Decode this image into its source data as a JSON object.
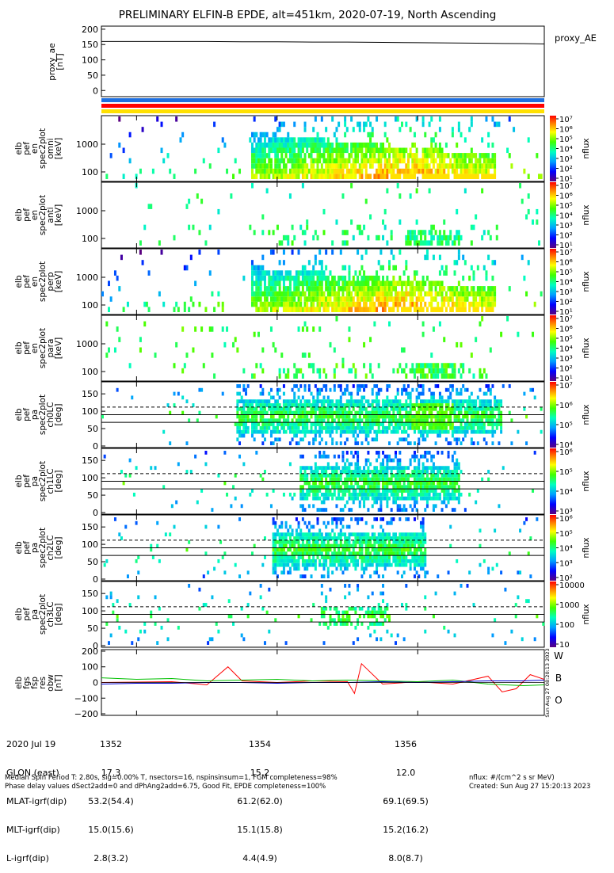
{
  "title": "PRELIMINARY ELFIN-B EPDE, alt=451km, 2020-07-19, North Ascending",
  "colors": {
    "red": "#ff0000",
    "green": "#00c000",
    "blue": "#0000d0",
    "bar_blue": "#1e6fe0",
    "bar_red": "#ff0000",
    "bar_yellow": "#ffe000"
  },
  "chart_data": [
    {
      "type": "line",
      "ylabel_lines": [
        "proxy_ae",
        "[nT]"
      ],
      "legend": "proxy_AE",
      "ylim": [
        -20,
        210
      ],
      "yticks": [
        "200",
        "150",
        "100",
        "50",
        "0"
      ],
      "x": [
        1351.5,
        1352,
        1352.5,
        1353,
        1353.5,
        1354,
        1354.5,
        1355,
        1355.5,
        1356,
        1356.5,
        1357,
        1357.5,
        1357.8
      ],
      "values": [
        160,
        160,
        160,
        160,
        159,
        159,
        158,
        158,
        157,
        156,
        155,
        154,
        153,
        152
      ]
    },
    {
      "type": "heatmap",
      "ylabel_lines": [
        "elb",
        "pef",
        "en",
        "spec2plot",
        "omni",
        "[keV]"
      ],
      "yticks": [
        "1000",
        "100"
      ],
      "cbar_ticks": [
        "10⁷",
        "10⁶",
        "10⁵",
        "10⁴",
        "10³",
        "10²",
        "10¹"
      ],
      "cbar_label": "nflux",
      "variant": "omni"
    },
    {
      "type": "heatmap",
      "ylabel_lines": [
        "elb",
        "pef",
        "en",
        "spec2plot",
        "anti",
        "[keV]"
      ],
      "yticks": [
        "1000",
        "100"
      ],
      "cbar_ticks": [
        "10⁷",
        "10⁶",
        "10⁵",
        "10⁴",
        "10³",
        "10²",
        "10¹"
      ],
      "cbar_label": "nflux",
      "variant": "anti"
    },
    {
      "type": "heatmap",
      "ylabel_lines": [
        "elb",
        "pef",
        "en",
        "spec2plot",
        "perp",
        "[keV]"
      ],
      "yticks": [
        "1000",
        "100"
      ],
      "cbar_ticks": [
        "10⁷",
        "10⁶",
        "10⁵",
        "10⁴",
        "10³",
        "10²",
        "10¹"
      ],
      "cbar_label": "nflux",
      "variant": "perp"
    },
    {
      "type": "heatmap",
      "ylabel_lines": [
        "elb",
        "pef",
        "en",
        "spec2plot",
        "para",
        "[keV]"
      ],
      "yticks": [
        "1000",
        "100"
      ],
      "cbar_ticks": [
        "10⁷",
        "10⁶",
        "10⁵",
        "10⁴",
        "10³",
        "10²",
        "10¹"
      ],
      "cbar_label": "nflux",
      "variant": "para"
    },
    {
      "type": "heatmap",
      "ylabel_lines": [
        "elb",
        "pef",
        "pa",
        "spec2plot",
        "ch0LC",
        "[deg]"
      ],
      "yticks": [
        "150",
        "100",
        "50",
        "0"
      ],
      "cbar_ticks": [
        "10⁷",
        "10⁶",
        "10⁵",
        "10⁴"
      ],
      "cbar_label": "nflux",
      "variant": "ch0"
    },
    {
      "type": "heatmap",
      "ylabel_lines": [
        "elb",
        "pef",
        "pa",
        "spec2plot",
        "ch1LC",
        "[deg]"
      ],
      "yticks": [
        "150",
        "100",
        "50",
        "0"
      ],
      "cbar_ticks": [
        "10⁶",
        "10⁵",
        "10⁴",
        "10³"
      ],
      "cbar_label": "nflux",
      "variant": "ch1"
    },
    {
      "type": "heatmap",
      "ylabel_lines": [
        "elb",
        "pef",
        "pa",
        "spec2plot",
        "ch2LC",
        "[deg]"
      ],
      "yticks": [
        "150",
        "100",
        "50",
        "0"
      ],
      "cbar_ticks": [
        "10⁶",
        "10⁵",
        "10⁴",
        "10³",
        "10²"
      ],
      "cbar_label": "nflux",
      "variant": "ch2"
    },
    {
      "type": "heatmap",
      "ylabel_lines": [
        "elb",
        "pef",
        "pa",
        "spec2plot",
        "ch3LC",
        "[deg]"
      ],
      "yticks": [
        "150",
        "100",
        "50",
        "0"
      ],
      "cbar_ticks": [
        "10000",
        "1000",
        "100",
        "10"
      ],
      "cbar_label": "nflux",
      "variant": "ch3"
    },
    {
      "type": "line",
      "ylabel_lines": [
        "elb",
        "fgs",
        "fsp",
        "res",
        "obw",
        "[nT]"
      ],
      "ylim": [
        -210,
        210
      ],
      "yticks": [
        "200",
        "100",
        "0",
        "−100",
        "−200"
      ],
      "legend_letters": [
        "W",
        "B",
        "O"
      ],
      "side_stamp": "Sun Aug 27 08:20:13 2023",
      "series": [
        {
          "name": "W",
          "x": [
            1351.5,
            1352.5,
            1353.0,
            1353.3,
            1353.5,
            1354.0,
            1354.5,
            1355.0,
            1355.1,
            1355.2,
            1355.5,
            1356.0,
            1356.5,
            1357.0,
            1357.2,
            1357.4,
            1357.6,
            1357.8
          ],
          "values": [
            0,
            5,
            -15,
            100,
            10,
            0,
            10,
            5,
            -70,
            120,
            -10,
            5,
            -10,
            40,
            -60,
            -40,
            50,
            20
          ]
        },
        {
          "name": "B",
          "x": [
            1351.5,
            1352.0,
            1352.5,
            1353.0,
            1353.5,
            1354.0,
            1354.5,
            1355.0,
            1355.5,
            1356.0,
            1356.5,
            1357.0,
            1357.5,
            1357.8
          ],
          "values": [
            30,
            20,
            25,
            10,
            15,
            20,
            10,
            15,
            10,
            5,
            15,
            -10,
            -20,
            -15
          ]
        },
        {
          "name": "O",
          "x": [
            1351.5,
            1352.0,
            1352.5,
            1353.0,
            1353.5,
            1354.0,
            1354.5,
            1355.0,
            1355.5,
            1356.0,
            1356.5,
            1357.0,
            1357.5,
            1357.8
          ],
          "values": [
            -10,
            -5,
            -5,
            0,
            0,
            -5,
            0,
            0,
            5,
            0,
            5,
            10,
            10,
            15
          ]
        }
      ]
    }
  ],
  "x_axis": {
    "row_labels": [
      "2020 Jul 19",
      "GLON (east)",
      "MLAT-igrf(dip)",
      "MLT-igrf(dip)",
      "L-igrf(dip)"
    ],
    "ticks": [
      {
        "x": 1352,
        "values": [
          "1352",
          "17.3",
          "53.2(54.4)",
          "15.0(15.6)",
          "2.8(3.2)"
        ]
      },
      {
        "x": 1354,
        "values": [
          "1354",
          "15.2",
          "61.2(62.0)",
          "15.1(15.8)",
          "4.4(4.9)"
        ]
      },
      {
        "x": 1356,
        "values": [
          "1356",
          "12.0",
          "69.1(69.5)",
          "15.2(16.2)",
          "8.0(8.7)"
        ]
      }
    ]
  },
  "footer": {
    "line1": "Median Spin Period T: 2.80s, sig=0.00% T, nsectors=16, nspinsinsum=1, FGM completeness=98%",
    "line2": "Phase delay values dSect2add=0 and dPhAng2add=6.75, Good Fit, EPDE completeness=100%",
    "right1": "nflux: #/(cm^2 s sr MeV)",
    "right2": "Created: Sun Aug 27 15:20:13 2023"
  }
}
